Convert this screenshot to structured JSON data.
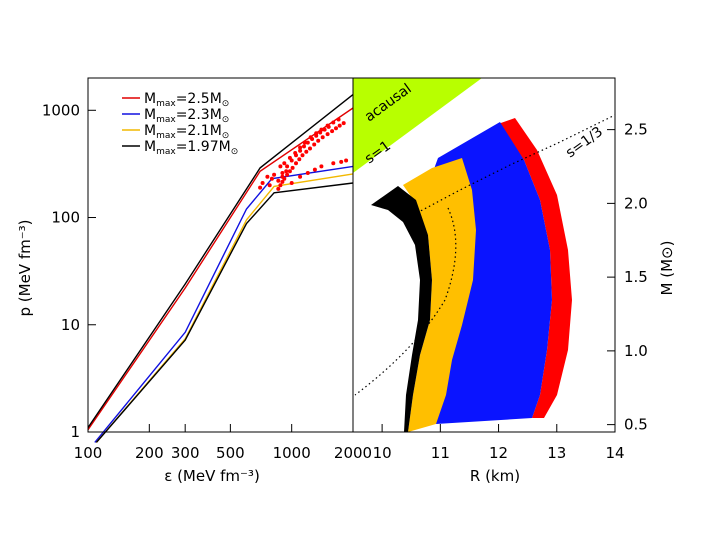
{
  "chart_data": [
    {
      "panel": "left",
      "type": "line",
      "xscale": "log",
      "yscale": "log",
      "xlabel": "ε (MeV fm⁻³)",
      "ylabel": "p (MeV fm⁻³)",
      "xlim": [
        100,
        2000
      ],
      "ylim": [
        1,
        2000
      ],
      "xticks": [
        {
          "value": 100,
          "label": "100"
        },
        {
          "value": 200,
          "label": "200"
        },
        {
          "value": 300,
          "label": "300"
        },
        {
          "value": 500,
          "label": "500"
        },
        {
          "value": 1000,
          "label": "1000"
        },
        {
          "value": 2000,
          "label": "2000"
        }
      ],
      "yticks": [
        {
          "value": 1,
          "label": "1"
        },
        {
          "value": 10,
          "label": "10"
        },
        {
          "value": 100,
          "label": "100"
        },
        {
          "value": 1000,
          "label": "1000"
        }
      ],
      "legend": {
        "position": "top-left",
        "entries": [
          {
            "prefix": "M",
            "sub": "max",
            "value": "=2.5M",
            "sun": "⊙",
            "color": "#e00000"
          },
          {
            "prefix": "M",
            "sub": "max",
            "value": "=2.3M",
            "sun": "⊙",
            "color": "#1010e0"
          },
          {
            "prefix": "M",
            "sub": "max",
            "value": "=2.1M",
            "sun": "⊙",
            "color": "#f2b800"
          },
          {
            "prefix": "M",
            "sub": "max",
            "value": "=1.97M",
            "sun": "⊙",
            "color": "#000000"
          }
        ]
      },
      "series": [
        {
          "color": "#e00000",
          "points": [
            [
              100,
              1.05
            ],
            [
              300,
              22
            ],
            [
              700,
              270
            ],
            [
              2000,
              1050
            ]
          ]
        },
        {
          "color": "#1010e0",
          "points": [
            [
              108,
              0.8
            ],
            [
              300,
              8.5
            ],
            [
              600,
              120
            ],
            [
              800,
              230
            ],
            [
              2000,
              300
            ]
          ]
        },
        {
          "color": "#f2b800",
          "points": [
            [
              110,
              0.8
            ],
            [
              300,
              7.4
            ],
            [
              600,
              95
            ],
            [
              820,
              195
            ],
            [
              2000,
              255
            ]
          ]
        },
        {
          "color": "#000000",
          "points": [
            [
              110,
              0.8
            ],
            [
              300,
              7.2
            ],
            [
              600,
              88
            ],
            [
              820,
              170
            ],
            [
              2000,
              210
            ]
          ]
        },
        {
          "color": "#000000",
          "points": [
            [
              100,
              1.1
            ],
            [
              300,
              24
            ],
            [
              700,
              290
            ],
            [
              2000,
              1400
            ]
          ]
        }
      ],
      "scatter": {
        "color": "#ff0000",
        "points": [
          [
            860,
            185
          ],
          [
            880,
            200
          ],
          [
            900,
            215
          ],
          [
            920,
            230
          ],
          [
            950,
            250
          ],
          [
            980,
            270
          ],
          [
            1010,
            290
          ],
          [
            1050,
            320
          ],
          [
            1090,
            350
          ],
          [
            1130,
            380
          ],
          [
            1180,
            410
          ],
          [
            1230,
            440
          ],
          [
            1290,
            480
          ],
          [
            1350,
            520
          ],
          [
            1420,
            560
          ],
          [
            1500,
            600
          ],
          [
            1580,
            640
          ],
          [
            1650,
            680
          ],
          [
            1720,
            720
          ],
          [
            1800,
            760
          ],
          [
            900,
            260
          ],
          [
            950,
            300
          ],
          [
            1000,
            340
          ],
          [
            1050,
            380
          ],
          [
            1100,
            420
          ],
          [
            1150,
            460
          ],
          [
            1200,
            500
          ],
          [
            1260,
            540
          ],
          [
            1320,
            580
          ],
          [
            1380,
            620
          ],
          [
            1450,
            660
          ],
          [
            1520,
            700
          ],
          [
            860,
            220
          ],
          [
            900,
            240
          ],
          [
            940,
            270
          ],
          [
            780,
            200
          ],
          [
            800,
            230
          ],
          [
            820,
            250
          ],
          [
            1000,
            210
          ],
          [
            1100,
            240
          ],
          [
            1200,
            260
          ],
          [
            1300,
            280
          ],
          [
            1400,
            300
          ],
          [
            1600,
            320
          ],
          [
            1750,
            330
          ],
          [
            1850,
            340
          ],
          [
            700,
            190
          ],
          [
            720,
            210
          ],
          [
            760,
            240
          ],
          [
            880,
            300
          ],
          [
            920,
            320
          ],
          [
            980,
            360
          ],
          [
            1040,
            400
          ],
          [
            1100,
            450
          ],
          [
            1160,
            500
          ],
          [
            1240,
            560
          ],
          [
            1320,
            610
          ],
          [
            1400,
            660
          ],
          [
            1500,
            720
          ],
          [
            1600,
            770
          ],
          [
            1700,
            820
          ]
        ]
      }
    },
    {
      "panel": "right",
      "type": "area",
      "xlabel": "R (km)",
      "ylabel": "M (M⊙)",
      "xlim": [
        9.5,
        14
      ],
      "ylim": [
        0.45,
        2.85
      ],
      "xticks": [
        "10",
        "11",
        "12",
        "13",
        "14"
      ],
      "yticks": [
        "0.5",
        "1.0",
        "1.5",
        "2.0",
        "2.5"
      ],
      "annotations": [
        "acausal",
        "s=1",
        "s=1/3"
      ],
      "colors": {
        "acausal": "#b8ff00",
        "red": "#ff0000",
        "blue": "#0a14ff",
        "yellow": "#ffbf00",
        "black": "#000000"
      }
    }
  ]
}
